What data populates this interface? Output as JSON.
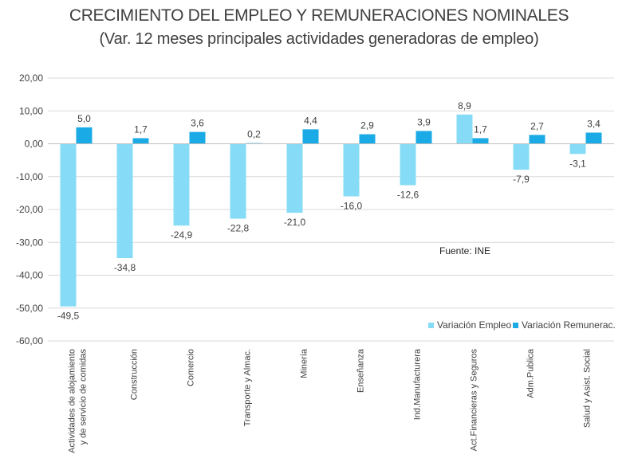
{
  "title": "CRECIMIENTO DEL EMPLEO Y REMUNERACIONES NOMINALES",
  "subtitle": "(Var. 12 meses principales actividades generadoras de empleo)",
  "source": "Fuente: INE",
  "colors": {
    "empleo": "#86dcf6",
    "remunerac": "#1aabe6",
    "grid": "#d9d9d9",
    "text": "#404040"
  },
  "chart_data": {
    "type": "bar",
    "title": "CRECIMIENTO DEL EMPLEO Y REMUNERACIONES NOMINALES",
    "subtitle": "(Var. 12 meses principales actividades generadoras de empleo)",
    "xlabel": "",
    "ylabel": "",
    "ylim": [
      -60,
      20
    ],
    "yticks": [
      20,
      10,
      0,
      -10,
      -20,
      -30,
      -40,
      -50,
      -60
    ],
    "ytick_labels": [
      "20,00",
      "10,00",
      "0,00",
      "-10,00",
      "-20,00",
      "-30,00",
      "-40,00",
      "-50,00",
      "-60,00"
    ],
    "grid": true,
    "legend_position": "bottom-right",
    "categories": [
      [
        "Actividades de alojamiento",
        "y de servicio de comidas"
      ],
      [
        "Construcción"
      ],
      [
        "Comercio"
      ],
      [
        "Transporte y Almac."
      ],
      [
        "Minería"
      ],
      [
        "Enseñanza"
      ],
      [
        "Ind.Manufacturera"
      ],
      [
        "Act.Financieras y Seguros"
      ],
      [
        "Adm.Publica"
      ],
      [
        "Salud y Asist. Social"
      ]
    ],
    "series": [
      {
        "name": "Variación Empleo",
        "values": [
          -49.5,
          -34.8,
          -24.9,
          -22.8,
          -21.0,
          -16.0,
          -12.6,
          8.9,
          -7.9,
          -3.1
        ],
        "labels": [
          "-49,5",
          "-34,8",
          "-24,9",
          "-22,8",
          "-21,0",
          "-16,0",
          "-12,6",
          "8,9",
          "-7,9",
          "-3,1"
        ]
      },
      {
        "name": "Variación Remunerac.",
        "values": [
          5.0,
          1.7,
          3.6,
          0.2,
          4.4,
          2.9,
          3.9,
          1.7,
          2.7,
          3.4
        ],
        "labels": [
          "5,0",
          "1,7",
          "3,6",
          "0,2",
          "4,4",
          "2,9",
          "3,9",
          "1,7",
          "2,7",
          "3,4"
        ]
      }
    ]
  }
}
